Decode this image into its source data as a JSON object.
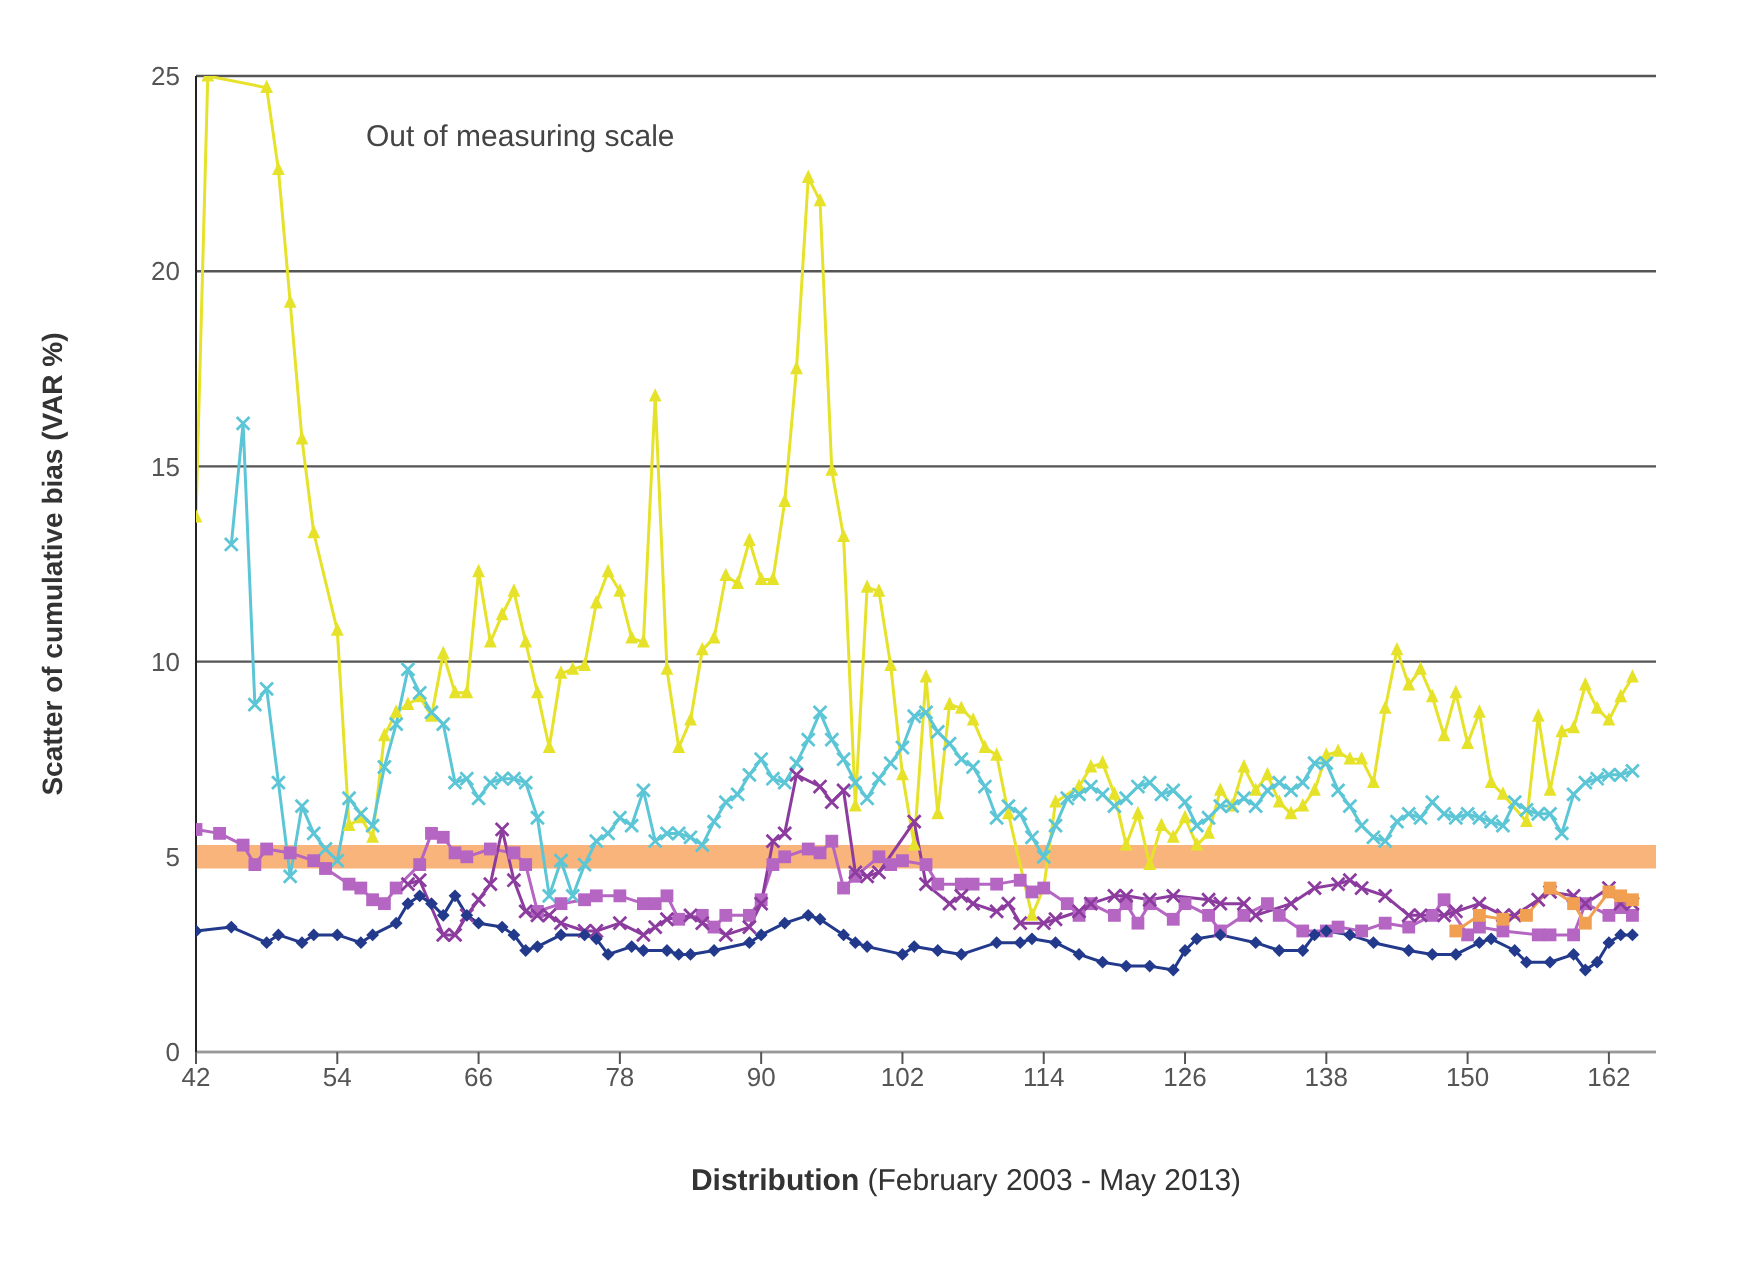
{
  "chart_data": {
    "type": "line",
    "xlabel": "Distribution (February 2003 - May 2013)",
    "ylabel": "Scatter of cumulative bias (VAR %)",
    "annotations": [
      "Out of measuring scale"
    ],
    "xlim": [
      42,
      166
    ],
    "xticks": [
      42,
      54,
      66,
      78,
      90,
      102,
      114,
      126,
      138,
      150,
      162
    ],
    "ylim": [
      0,
      25
    ],
    "yticks": [
      0,
      5,
      10,
      15,
      20,
      25
    ],
    "grid": "y",
    "line_style": "solid",
    "bands": [
      {
        "axis": "y",
        "from": 4.7,
        "to": 5.3,
        "color": "#f9b47c"
      }
    ],
    "series": [
      {
        "color": "#e6e22a",
        "marker": "triangle",
        "x": [
          42,
          43,
          48,
          49,
          50,
          51,
          52,
          54,
          55,
          56,
          57,
          58,
          59,
          60,
          61,
          62,
          63,
          64,
          65,
          66,
          67,
          68,
          69,
          70,
          71,
          72,
          73,
          74,
          75,
          76,
          77,
          78,
          79,
          80,
          81,
          82,
          83,
          84,
          85,
          86,
          87,
          88,
          89,
          90,
          91,
          92,
          93,
          94,
          95,
          96,
          97,
          98,
          99,
          100,
          101,
          102,
          103,
          104,
          105,
          106,
          107,
          108,
          109,
          110,
          111,
          113,
          114,
          115,
          117,
          118,
          119,
          120,
          121,
          122,
          123,
          124,
          125,
          126,
          127,
          128,
          129,
          130,
          131,
          132,
          133,
          134,
          135,
          136,
          137,
          138,
          139,
          140,
          141,
          142,
          143,
          144,
          145,
          146,
          147,
          148,
          149,
          150,
          151,
          152,
          153,
          155,
          156,
          157,
          158,
          159,
          160,
          161,
          162,
          163,
          164
        ],
        "values": [
          13.7,
          25,
          24.7,
          22.6,
          19.2,
          15.7,
          13.3,
          10.8,
          5.8,
          6.0,
          5.5,
          8.1,
          8.7,
          8.9,
          9.1,
          8.6,
          10.2,
          9.2,
          9.2,
          12.3,
          10.5,
          11.2,
          11.8,
          10.5,
          9.2,
          7.8,
          9.7,
          9.8,
          9.9,
          11.5,
          12.3,
          11.8,
          10.6,
          10.5,
          16.8,
          9.8,
          7.8,
          8.5,
          10.3,
          10.6,
          12.2,
          12.0,
          13.1,
          12.1,
          12.1,
          14.1,
          17.5,
          22.4,
          21.8,
          14.9,
          13.2,
          6.3,
          11.9,
          11.8,
          9.9,
          7.1,
          5.3,
          9.6,
          6.1,
          8.9,
          8.8,
          8.5,
          7.8,
          7.6,
          6.1,
          3.5,
          4.2,
          6.4,
          6.8,
          7.3,
          7.4,
          6.6,
          5.3,
          6.1,
          4.8,
          5.8,
          5.5,
          6.0,
          5.3,
          5.6,
          6.7,
          6.3,
          7.3,
          6.7,
          7.1,
          6.4,
          6.1,
          6.3,
          6.7,
          7.6,
          7.7,
          7.5,
          7.5,
          6.9,
          8.8,
          10.3,
          9.4,
          9.8,
          9.1,
          8.1,
          9.2,
          7.9,
          8.7,
          6.9,
          6.6,
          5.9,
          8.6,
          6.7,
          8.2,
          8.3,
          9.4,
          8.8,
          8.5,
          9.1,
          9.6
        ]
      },
      {
        "color": "#5cc6d6",
        "marker": "cross",
        "x": [
          45,
          46,
          47,
          48,
          49,
          50,
          51,
          52,
          53,
          54,
          55,
          56,
          57,
          58,
          59,
          60,
          61,
          62,
          63,
          64,
          65,
          66,
          67,
          68,
          69,
          70,
          71,
          72,
          73,
          74,
          75,
          76,
          77,
          78,
          79,
          80,
          81,
          82,
          83,
          84,
          85,
          86,
          87,
          88,
          89,
          90,
          91,
          92,
          93,
          94,
          95,
          96,
          97,
          98,
          99,
          100,
          101,
          102,
          103,
          104,
          105,
          106,
          107,
          108,
          109,
          110,
          111,
          112,
          113,
          114,
          115,
          116,
          117,
          118,
          119,
          120,
          121,
          122,
          123,
          124,
          125,
          126,
          127,
          128,
          129,
          130,
          131,
          132,
          133,
          134,
          135,
          136,
          137,
          138,
          139,
          140,
          141,
          142,
          143,
          144,
          145,
          146,
          147,
          148,
          149,
          150,
          151,
          152,
          153,
          154,
          155,
          156,
          157,
          158,
          159,
          160,
          161,
          162,
          163,
          164
        ],
        "values": [
          13,
          16.1,
          8.9,
          9.3,
          6.9,
          4.5,
          6.3,
          5.6,
          5.2,
          4.9,
          6.5,
          6.1,
          5.8,
          7.3,
          8.4,
          9.8,
          9.2,
          8.7,
          8.4,
          6.9,
          7.0,
          6.5,
          6.9,
          7.0,
          7.0,
          6.9,
          6.0,
          4.0,
          4.9,
          4.0,
          4.8,
          5.4,
          5.6,
          6.0,
          5.8,
          6.7,
          5.4,
          5.6,
          5.6,
          5.5,
          5.3,
          5.9,
          6.4,
          6.6,
          7.1,
          7.5,
          7.0,
          6.9,
          7.4,
          8.0,
          8.7,
          8.0,
          7.5,
          6.9,
          6.5,
          7.0,
          7.4,
          7.8,
          8.6,
          8.7,
          8.2,
          7.9,
          7.5,
          7.3,
          6.8,
          6.0,
          6.3,
          6.1,
          5.5,
          5.0,
          5.8,
          6.5,
          6.6,
          6.8,
          6.6,
          6.3,
          6.5,
          6.8,
          6.9,
          6.6,
          6.7,
          6.4,
          5.8,
          6.0,
          6.3,
          6.3,
          6.5,
          6.3,
          6.7,
          6.9,
          6.7,
          6.9,
          7.4,
          7.4,
          6.7,
          6.3,
          5.8,
          5.5,
          5.4,
          5.9,
          6.1,
          6.0,
          6.4,
          6.1,
          6.0,
          6.1,
          6.0,
          5.9,
          5.8,
          6.4,
          6.2,
          6.1,
          6.1,
          5.6,
          6.6,
          6.9,
          7.0,
          7.1,
          7.1,
          7.2
        ]
      },
      {
        "color": "#b565c2",
        "marker": "square",
        "x": [
          42,
          44,
          46,
          47,
          48,
          50,
          52,
          53,
          55,
          56,
          57,
          58,
          59,
          61,
          62,
          63,
          64,
          65,
          67,
          69,
          70,
          71,
          73,
          75,
          76,
          78,
          80,
          81,
          82,
          83,
          85,
          86,
          87,
          89,
          90,
          91,
          92,
          94,
          95,
          96,
          97,
          98,
          100,
          101,
          102,
          104,
          105,
          107,
          108,
          110,
          112,
          113,
          114,
          116,
          117,
          118,
          120,
          121,
          122,
          123,
          125,
          126,
          128,
          129,
          131,
          133,
          134,
          136,
          138,
          139,
          141,
          143,
          145,
          147,
          148,
          150,
          151,
          153,
          156,
          157,
          159,
          160,
          162,
          163,
          164
        ],
        "values": [
          5.7,
          5.6,
          5.3,
          4.8,
          5.2,
          5.1,
          4.9,
          4.7,
          4.3,
          4.2,
          3.9,
          3.8,
          4.2,
          4.8,
          5.6,
          5.5,
          5.1,
          5.0,
          5.2,
          5.1,
          4.8,
          3.6,
          3.8,
          3.9,
          4.0,
          4.0,
          3.8,
          3.8,
          4.0,
          3.4,
          3.5,
          3.2,
          3.5,
          3.5,
          3.9,
          4.8,
          5.0,
          5.2,
          5.1,
          5.4,
          4.2,
          4.5,
          5.0,
          4.8,
          4.9,
          4.8,
          4.3,
          4.3,
          4.3,
          4.3,
          4.4,
          4.1,
          4.2,
          3.8,
          3.5,
          3.8,
          3.5,
          3.8,
          3.3,
          3.8,
          3.4,
          3.8,
          3.5,
          3.1,
          3.5,
          3.8,
          3.5,
          3.1,
          3.1,
          3.2,
          3.1,
          3.3,
          3.2,
          3.5,
          3.9,
          3.0,
          3.2,
          3.1,
          3.0,
          3.0,
          3.0,
          3.8,
          3.5,
          3.7,
          3.5
        ]
      },
      {
        "color": "#8c3c9e",
        "marker": "cross",
        "x": [
          60,
          61,
          63,
          64,
          65,
          66,
          67,
          68,
          69,
          70,
          71,
          72,
          73,
          75,
          76,
          78,
          80,
          81,
          82,
          84,
          85,
          87,
          89,
          90,
          91,
          92,
          93,
          95,
          96,
          97,
          98,
          99,
          100,
          103,
          104,
          106,
          107,
          108,
          110,
          111,
          112,
          114,
          115,
          117,
          118,
          120,
          121,
          123,
          125,
          128,
          129,
          131,
          132,
          135,
          137,
          139,
          140,
          141,
          143,
          145,
          146,
          148,
          149,
          151,
          153,
          154,
          156,
          157,
          159,
          160,
          162,
          163,
          164
        ],
        "values": [
          4.3,
          4.4,
          3.0,
          3.0,
          3.5,
          3.9,
          4.3,
          5.7,
          4.4,
          3.6,
          3.5,
          3.5,
          3.3,
          3.1,
          3.1,
          3.3,
          3.0,
          3.2,
          3.4,
          3.5,
          3.3,
          3.0,
          3.2,
          3.8,
          5.4,
          5.6,
          7.1,
          6.8,
          6.4,
          6.7,
          4.6,
          4.5,
          4.6,
          5.9,
          4.3,
          3.8,
          4.0,
          3.8,
          3.6,
          3.8,
          3.3,
          3.3,
          3.4,
          3.6,
          3.8,
          4.0,
          4.0,
          3.9,
          4.0,
          3.9,
          3.8,
          3.8,
          3.5,
          3.8,
          4.2,
          4.3,
          4.4,
          4.2,
          4.0,
          3.5,
          3.5,
          3.5,
          3.6,
          3.8,
          3.5,
          3.5,
          3.9,
          4.1,
          4.0,
          3.8,
          4.2,
          3.8,
          3.8
        ]
      },
      {
        "color": "#233a8c",
        "marker": "diamond",
        "x": [
          42,
          45,
          48,
          49,
          51,
          52,
          54,
          56,
          57,
          59,
          60,
          61,
          62,
          63,
          64,
          65,
          66,
          68,
          69,
          70,
          71,
          73,
          75,
          76,
          77,
          79,
          80,
          82,
          83,
          84,
          86,
          89,
          90,
          92,
          94,
          95,
          97,
          98,
          99,
          102,
          103,
          105,
          107,
          110,
          112,
          113,
          115,
          117,
          119,
          121,
          123,
          125,
          126,
          127,
          129,
          132,
          134,
          136,
          137,
          138,
          140,
          142,
          145,
          147,
          149,
          151,
          152,
          154,
          155,
          157,
          159,
          160,
          161,
          162,
          163,
          164
        ],
        "values": [
          3.1,
          3.2,
          2.8,
          3.0,
          2.8,
          3.0,
          3.0,
          2.8,
          3.0,
          3.3,
          3.8,
          4.0,
          3.8,
          3.5,
          4.0,
          3.5,
          3.3,
          3.2,
          3.0,
          2.6,
          2.7,
          3.0,
          3.0,
          2.9,
          2.5,
          2.7,
          2.6,
          2.6,
          2.5,
          2.5,
          2.6,
          2.8,
          3.0,
          3.3,
          3.5,
          3.4,
          3.0,
          2.8,
          2.7,
          2.5,
          2.7,
          2.6,
          2.5,
          2.8,
          2.8,
          2.9,
          2.8,
          2.5,
          2.3,
          2.2,
          2.2,
          2.1,
          2.6,
          2.9,
          3.0,
          2.8,
          2.6,
          2.6,
          3.0,
          3.1,
          3.0,
          2.8,
          2.6,
          2.5,
          2.5,
          2.8,
          2.9,
          2.6,
          2.3,
          2.3,
          2.5,
          2.1,
          2.3,
          2.8,
          3.0,
          3.0
        ]
      },
      {
        "color": "#f0a050",
        "marker": "square",
        "x": [
          149,
          151,
          153,
          155,
          157,
          159,
          160,
          162,
          163,
          164
        ],
        "values": [
          3.1,
          3.5,
          3.4,
          3.5,
          4.2,
          3.8,
          3.3,
          4.1,
          4.0,
          3.9
        ]
      }
    ]
  }
}
